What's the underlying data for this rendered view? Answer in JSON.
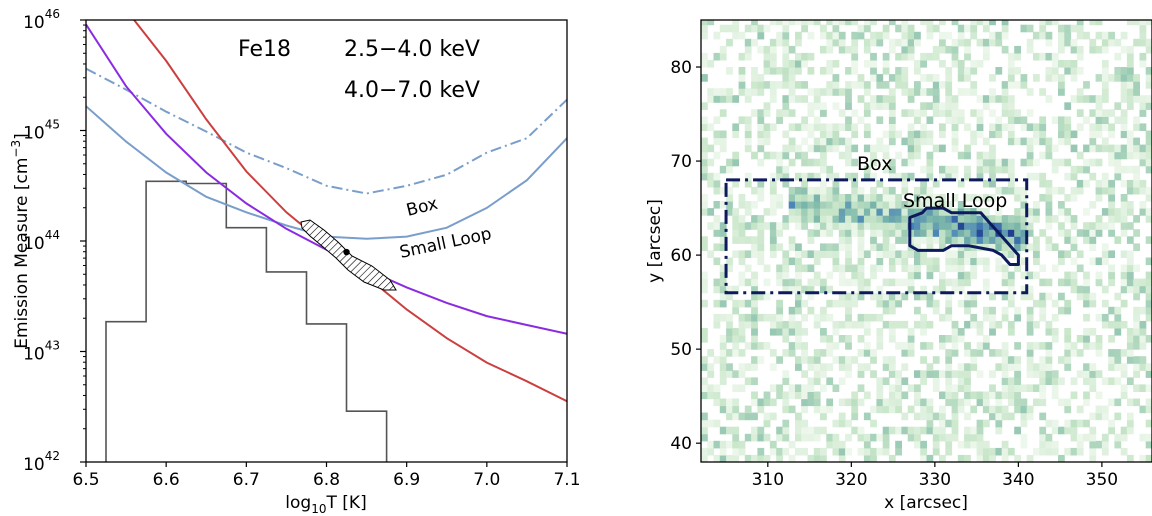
{
  "chart_data": [
    {
      "type": "line",
      "xlabel_prefix": "log",
      "xlabel_sub": "10",
      "xlabel_suffix": "T [K]",
      "ylabel_text": "Emission Measure [cm",
      "ylabel_sup": "−3",
      "ylabel_close": "]",
      "xlim": [
        6.5,
        7.1
      ],
      "ylim_log10": [
        42,
        46
      ],
      "yscale": "log",
      "x_ticks": [
        "6.5",
        "6.6",
        "6.7",
        "6.8",
        "6.9",
        "7.0",
        "7.1"
      ],
      "y_ticks": [
        {
          "base": "10",
          "exp": "42"
        },
        {
          "base": "10",
          "exp": "43"
        },
        {
          "base": "10",
          "exp": "44"
        },
        {
          "base": "10",
          "exp": "45"
        },
        {
          "base": "10",
          "exp": "46"
        }
      ],
      "legend": [
        {
          "label": "Fe18",
          "color": "#7a9ecb"
        },
        {
          "label": "2.5−4.0 keV",
          "color": "#8a2be2"
        },
        {
          "label": "4.0−7.0 keV",
          "color": "#cc3f3f"
        }
      ],
      "annotations": [
        {
          "text": "Box",
          "color": "#7a9ecb"
        },
        {
          "text": "Small Loop",
          "color": "#7a9ecb"
        }
      ],
      "series": [
        {
          "name": "Fe18",
          "color": "#7a9ecb",
          "style": "dashdot",
          "x": [
            6.5,
            6.55,
            6.6,
            6.65,
            6.7,
            6.75,
            6.8,
            6.85,
            6.9,
            6.95,
            7.0,
            7.05,
            7.1
          ],
          "log_y": [
            45.56,
            45.37,
            45.17,
            44.99,
            44.8,
            44.66,
            44.5,
            44.43,
            44.5,
            44.6,
            44.8,
            44.93,
            45.28
          ]
        },
        {
          "name": "Fe18",
          "color": "#7a9ecb",
          "style": "solid",
          "x": [
            6.5,
            6.55,
            6.6,
            6.65,
            6.7,
            6.75,
            6.8,
            6.85,
            6.9,
            6.95,
            7.0,
            7.05,
            7.1
          ],
          "log_y": [
            45.22,
            44.9,
            44.62,
            44.4,
            44.26,
            44.14,
            44.04,
            44.02,
            44.04,
            44.12,
            44.3,
            44.55,
            44.93
          ]
        },
        {
          "name": "2.5−4.0 keV",
          "color": "#8a2be2",
          "style": "solid",
          "x": [
            6.5,
            6.55,
            6.6,
            6.65,
            6.7,
            6.75,
            6.8,
            6.85,
            6.9,
            6.95,
            7.0,
            7.05,
            7.1
          ],
          "log_y": [
            45.96,
            45.4,
            44.97,
            44.62,
            44.34,
            44.11,
            43.92,
            43.74,
            43.58,
            43.44,
            43.32,
            43.24,
            43.16
          ]
        },
        {
          "name": "4.0−7.0 keV",
          "color": "#cc3f3f",
          "style": "solid",
          "x": [
            6.56,
            6.6,
            6.65,
            6.7,
            6.75,
            6.8,
            6.85,
            6.9,
            6.95,
            7.0,
            7.05,
            7.1
          ],
          "log_y": [
            46.0,
            45.63,
            45.1,
            44.63,
            44.26,
            43.96,
            43.68,
            43.38,
            43.12,
            42.9,
            42.73,
            42.55
          ]
        }
      ],
      "histogram": {
        "color": "#555555",
        "bin_edges": [
          6.525,
          6.575,
          6.625,
          6.675,
          6.725,
          6.775,
          6.825,
          6.875
        ],
        "log_counts": [
          43.27,
          44.54,
          44.52,
          44.12,
          43.72,
          43.25,
          42.46
        ]
      },
      "best_fit": {
        "x": 6.825,
        "log_y": 43.9
      }
    },
    {
      "type": "heatmap",
      "xlabel": "x [arcsec]",
      "ylabel": "y [arcsec]",
      "xlim": [
        302,
        356
      ],
      "ylim": [
        38,
        85
      ],
      "x_ticks": [
        "310",
        "320",
        "330",
        "340",
        "350"
      ],
      "y_ticks": [
        "40",
        "50",
        "60",
        "70",
        "80"
      ],
      "colormap": [
        "#f7fcf5",
        "#c8e6c9",
        "#7fb9a9",
        "#4a84b8",
        "#1f3f8f"
      ],
      "annotations": [
        {
          "text": "Box",
          "color": "#0d1a5c"
        },
        {
          "text": "Small Loop",
          "color": "#0d1a5c"
        }
      ],
      "regions": [
        {
          "name": "Box",
          "style": "dashdot",
          "color": "#0d1a5c",
          "x": [
            305,
            341
          ],
          "y": [
            56,
            68
          ]
        },
        {
          "name": "Small Loop",
          "style": "solid",
          "color": "#0d1a5c",
          "points": [
            [
              327,
              61
            ],
            [
              327,
              64
            ],
            [
              328.5,
              64.5
            ],
            [
              329,
              65
            ],
            [
              331,
              65
            ],
            [
              332,
              64.5
            ],
            [
              335.5,
              64.5
            ],
            [
              336.5,
              63.5
            ],
            [
              338,
              62
            ],
            [
              340,
              60
            ],
            [
              340,
              59
            ],
            [
              339,
              59
            ],
            [
              338,
              60
            ],
            [
              337,
              60.5
            ],
            [
              334,
              61
            ],
            [
              332,
              61
            ],
            [
              331,
              60.5
            ],
            [
              328,
              60.5
            ]
          ]
        }
      ]
    }
  ]
}
